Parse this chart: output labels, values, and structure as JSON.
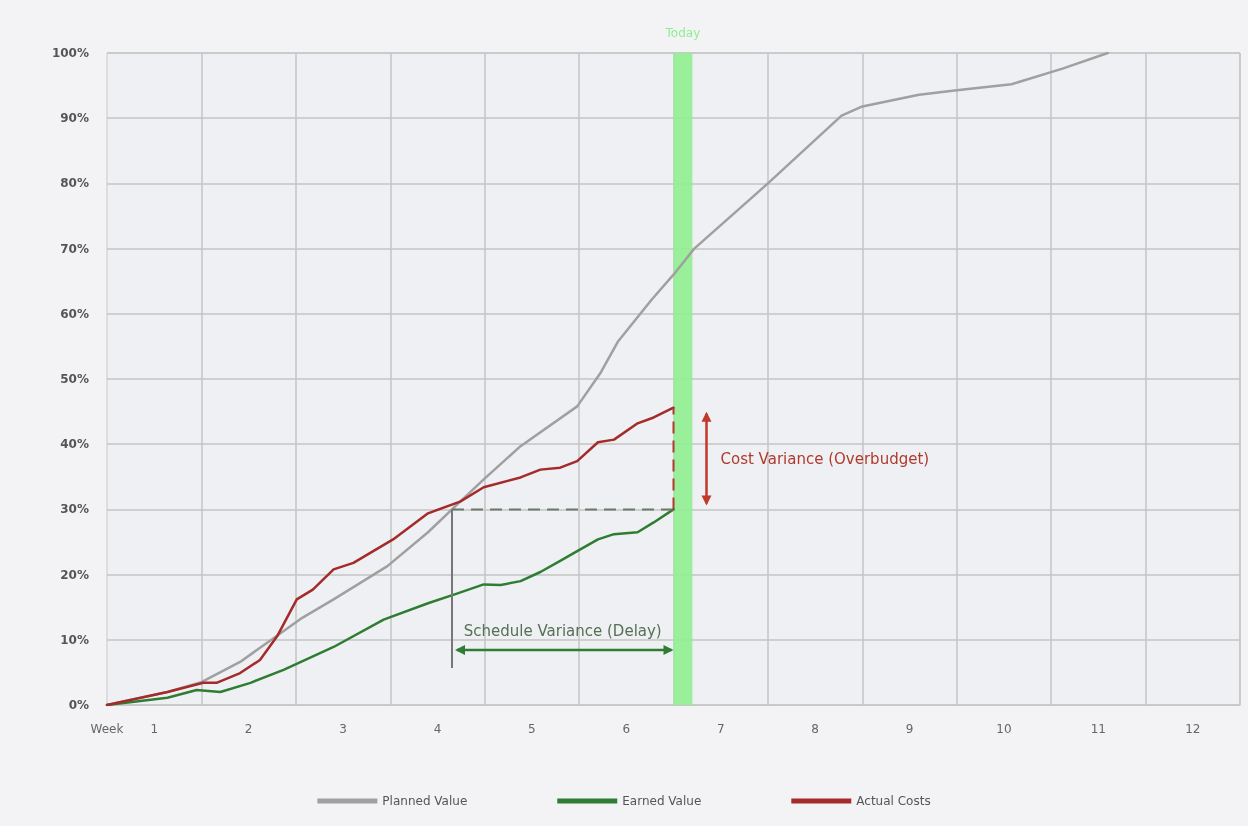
{
  "chart_data": {
    "type": "line",
    "xlim": [
      0,
      12
    ],
    "ylim": [
      0,
      100
    ],
    "xticks": [
      {
        "value": 0,
        "label": "Week"
      },
      {
        "value": 0.5,
        "label": "1"
      },
      {
        "value": 1,
        "label": null
      },
      {
        "value": 1.5,
        "label": "2"
      },
      {
        "value": 2,
        "label": null
      },
      {
        "value": 2.5,
        "label": "3"
      },
      {
        "value": 3,
        "label": null
      },
      {
        "value": 3.5,
        "label": "4"
      },
      {
        "value": 4,
        "label": null
      },
      {
        "value": 4.5,
        "label": "5"
      },
      {
        "value": 5,
        "label": null
      },
      {
        "value": 5.5,
        "label": "6"
      },
      {
        "value": 6,
        "label": null
      },
      {
        "value": 6.5,
        "label": "7"
      },
      {
        "value": 7,
        "label": null
      },
      {
        "value": 7.5,
        "label": "8"
      },
      {
        "value": 8,
        "label": null
      },
      {
        "value": 8.5,
        "label": "9"
      },
      {
        "value": 9,
        "label": null
      },
      {
        "value": 9.5,
        "label": "10"
      },
      {
        "value": 10,
        "label": null
      },
      {
        "value": 10.5,
        "label": "11"
      },
      {
        "value": 11,
        "label": null
      },
      {
        "value": 11.5,
        "label": "12"
      },
      {
        "value": 12,
        "label": null
      }
    ],
    "yticks": [
      {
        "value": 0,
        "label": "0%"
      },
      {
        "value": 10,
        "label": "10%"
      },
      {
        "value": 20,
        "label": "20%"
      },
      {
        "value": 30,
        "label": "30%"
      },
      {
        "value": 40,
        "label": "40%"
      },
      {
        "value": 50,
        "label": "50%"
      },
      {
        "value": 60,
        "label": "60%"
      },
      {
        "value": 70,
        "label": "70%"
      },
      {
        "value": 80,
        "label": "80%"
      },
      {
        "value": 90,
        "label": "90%"
      },
      {
        "value": 100,
        "label": "100%"
      }
    ],
    "series": [
      {
        "name": "Planned Value",
        "color": "#a0a0a0",
        "x": [
          0,
          0.64,
          1.0,
          1.41,
          1.7,
          2.05,
          2.4,
          2.97,
          3.4,
          3.69,
          3.99,
          4.38,
          4.98,
          5.23,
          5.41,
          5.77,
          6.0,
          6.22,
          7.0,
          7.78,
          8.0,
          8.6,
          9.0,
          9.58,
          10.12,
          10.6
        ],
        "values": [
          0,
          2,
          3.5,
          6.6,
          9.6,
          13.2,
          16.2,
          21.3,
          26.5,
          30.5,
          34.6,
          39.7,
          45.8,
          51,
          55.7,
          62.2,
          66,
          70,
          80,
          90.4,
          91.8,
          93.6,
          94.3,
          95.2,
          97.6,
          100
        ]
      },
      {
        "name": "Earned Value",
        "color": "#2e7d32",
        "x": [
          0,
          0.64,
          0.95,
          1.2,
          1.52,
          1.87,
          2.4,
          2.93,
          3.4,
          3.69,
          3.99,
          4.17,
          4.38,
          4.59,
          4.8,
          4.98,
          5.2,
          5.37,
          5.62,
          5.79,
          6.0
        ],
        "values": [
          0,
          1.1,
          2.3,
          2,
          3.4,
          5.4,
          8.9,
          13.1,
          15.6,
          17,
          18.5,
          18.4,
          19,
          20.4,
          22.1,
          23.6,
          25.4,
          26.2,
          26.5,
          28,
          30
        ]
      },
      {
        "name": "Actual Costs",
        "color": "#a52a2a",
        "x": [
          0,
          0.64,
          1.02,
          1.16,
          1.41,
          1.62,
          1.8,
          2.01,
          2.18,
          2.4,
          2.61,
          3.03,
          3.4,
          3.74,
          3.99,
          4.38,
          4.59,
          4.8,
          4.98,
          5.2,
          5.37,
          5.62,
          5.79,
          6.0
        ],
        "values": [
          0,
          2,
          3.4,
          3.4,
          4.9,
          6.9,
          10.5,
          16.2,
          17.7,
          20.8,
          21.8,
          25.4,
          29.4,
          31.2,
          33.4,
          34.9,
          36.1,
          36.4,
          37.4,
          40.3,
          40.7,
          43.2,
          44.1,
          45.6
        ]
      }
    ],
    "bands": [
      {
        "axis": "x",
        "from": 6.0,
        "to": 6.2,
        "label": "Today",
        "color": "#90ee90"
      }
    ],
    "annotations": [
      "Schedule Variance (Delay)",
      "Cost Variance (Overbudget)"
    ],
    "grid": true,
    "legend": "bottom",
    "marker": "none"
  }
}
